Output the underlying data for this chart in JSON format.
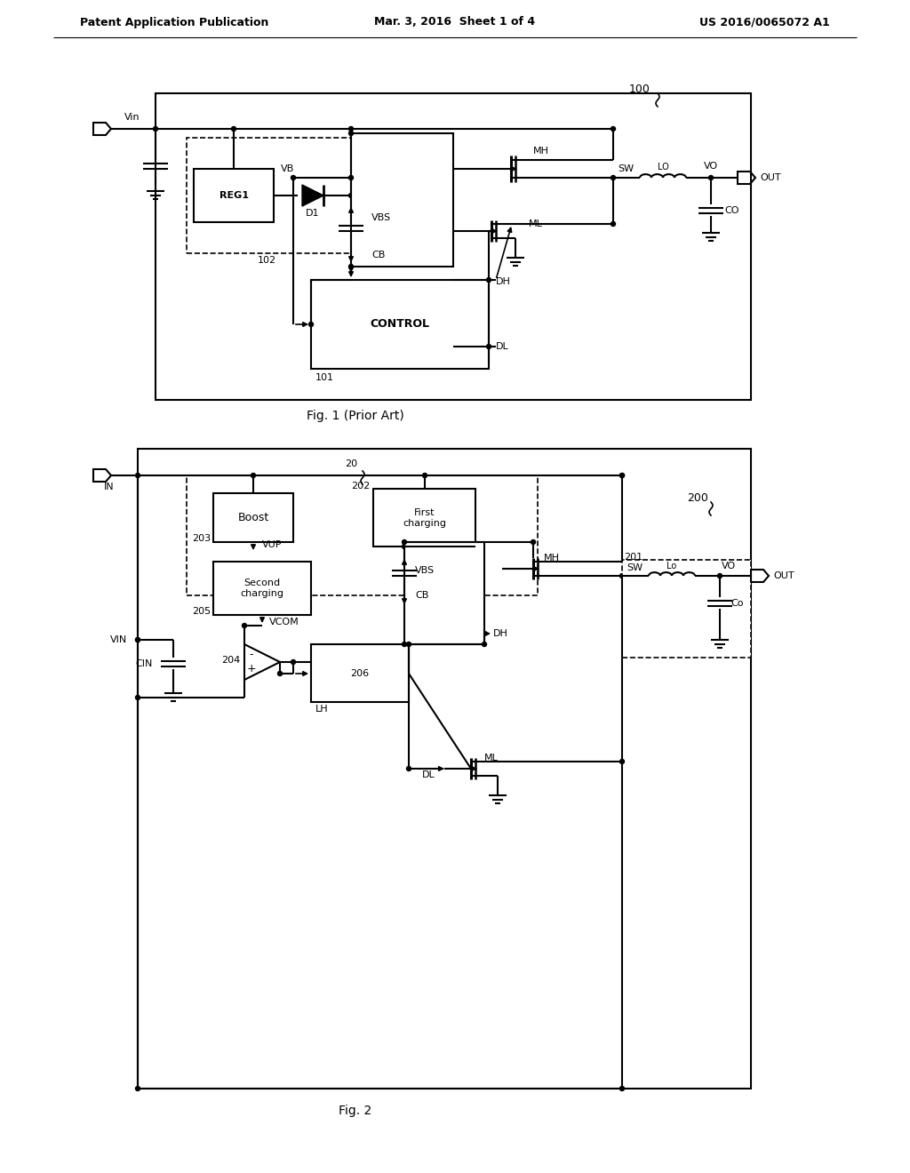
{
  "header_left": "Patent Application Publication",
  "header_mid": "Mar. 3, 2016  Sheet 1 of 4",
  "header_right": "US 2016/0065072 A1",
  "fig1_caption": "Fig. 1 (Prior Art)",
  "fig2_caption": "Fig. 2",
  "background": "#ffffff"
}
